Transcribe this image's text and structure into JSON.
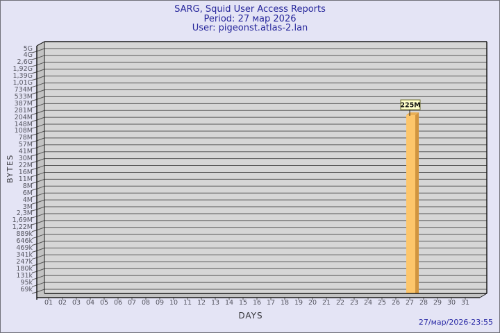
{
  "header": {
    "title": "SARG, Squid User Access Reports",
    "period": "Period: 27 мар 2026",
    "user": "User: pigeonst.atlas-2.lan"
  },
  "footer": {
    "timestamp": "27/мар/2026-23:55"
  },
  "chart_data": {
    "type": "bar",
    "title": "SARG, Squid User Access Reports",
    "subtitle_lines": [
      "Period: 27 мар 2026",
      "User: pigeonst.atlas-2.lan"
    ],
    "xlabel": "DAYS",
    "ylabel": "BYTES",
    "y_scale": "log",
    "grid": true,
    "legend": false,
    "x_categories": [
      "01",
      "02",
      "03",
      "04",
      "05",
      "06",
      "07",
      "08",
      "09",
      "10",
      "11",
      "12",
      "13",
      "14",
      "15",
      "16",
      "17",
      "18",
      "19",
      "20",
      "21",
      "22",
      "23",
      "24",
      "25",
      "26",
      "27",
      "28",
      "29",
      "30",
      "31"
    ],
    "y_tick_labels": [
      "5G",
      "4G",
      "2,6G",
      "1,92G",
      "1,39G",
      "1,01G",
      "734M",
      "533M",
      "387M",
      "281M",
      "204M",
      "148M",
      "108M",
      "78M",
      "57M",
      "41M",
      "30M",
      "22M",
      "16M",
      "11M",
      "8M",
      "6M",
      "4M",
      "3M",
      "2,3M",
      "1,69M",
      "1,22M",
      "889k",
      "646k",
      "469k",
      "341k",
      "247k",
      "180k",
      "131k",
      "95k",
      "69k"
    ],
    "bars": [
      {
        "day": "27",
        "value_label": "225M",
        "value_bytes": 225000000
      }
    ]
  },
  "colors": {
    "page_bg": "#e4e4f5",
    "page_border": "#6f6f78",
    "panel_bg": "#d6d6d6",
    "wall": "#c3c3c3",
    "grid": "#555555",
    "edge": "#1b1b1b",
    "tick_text": "#54545f",
    "axis_title_text": "#35353a",
    "title_text": "#26269b",
    "timestamp_text": "#2a2aa6",
    "bar_front": "#fdc66b",
    "bar_side": "#d1953f",
    "bar_top": "#e9af55",
    "bar_label_bg": "#ffffc9",
    "bar_label_border": "#70702f",
    "bar_label_text": "#101010"
  }
}
